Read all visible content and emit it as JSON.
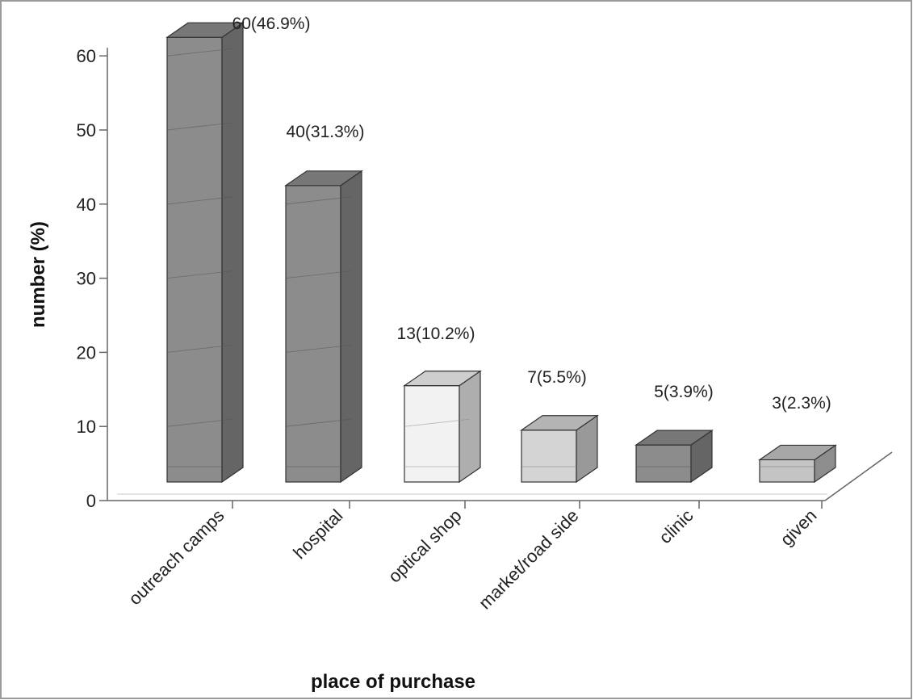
{
  "chart_data": {
    "type": "bar",
    "title": "",
    "xlabel": "place of purchase",
    "ylabel": "number (%)",
    "categories": [
      "outreach camps",
      "hospital",
      "optical shop",
      "market/road side",
      "clinic",
      "given"
    ],
    "values": [
      60,
      40,
      13,
      7,
      5,
      3
    ],
    "data_labels": [
      "60(46.9%)",
      "40(31.3%)",
      "13(10.2%)",
      "7(5.5%)",
      "5(3.9%)",
      "3(2.3%)"
    ],
    "bar_colors": [
      "#8c8c8c",
      "#8c8c8c",
      "#f2f2f2",
      "#d4d4d4",
      "#8c8c8c",
      "#c4c4c4"
    ],
    "ylim": [
      0,
      60
    ],
    "yticks": [
      0,
      10,
      20,
      30,
      40,
      50,
      60
    ],
    "grid": false,
    "legend": "none",
    "style": "3d"
  }
}
